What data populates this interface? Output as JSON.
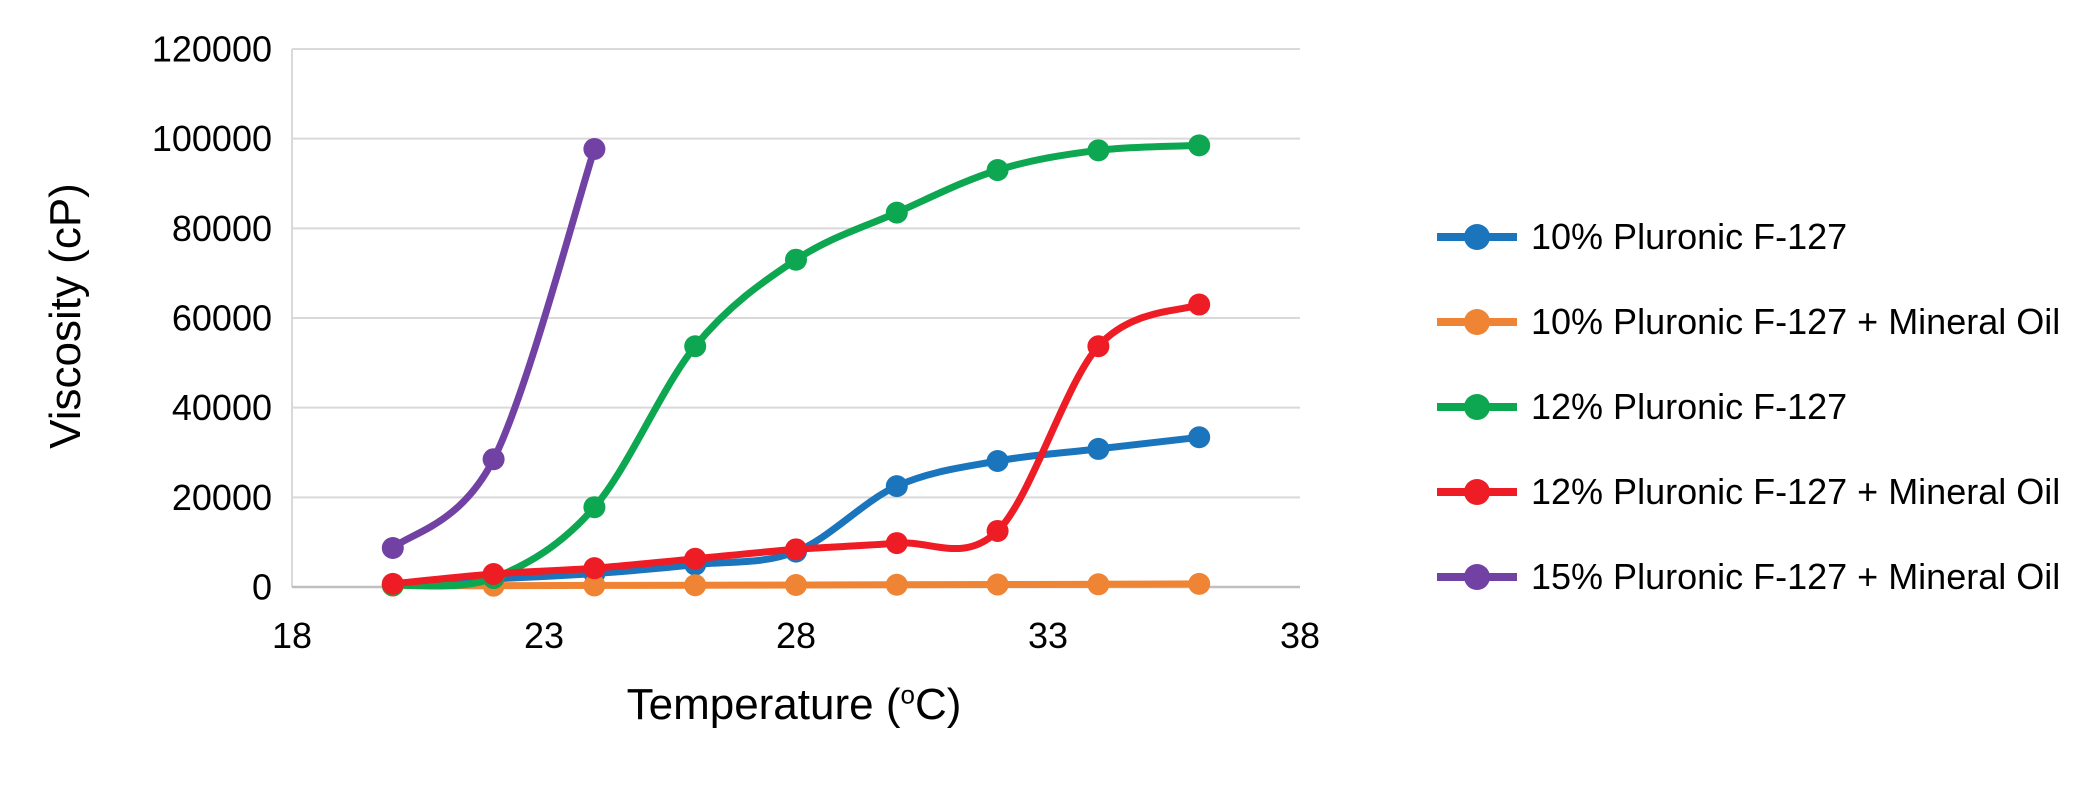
{
  "chart_data": {
    "type": "line",
    "title": "",
    "xlabel": "Temperature (°C)",
    "xlabel_parts": {
      "prefix": "Temperature (",
      "sup": "o",
      "suffix": "C)"
    },
    "ylabel": "Viscosity (cP)",
    "xlim": [
      18,
      38
    ],
    "ylim": [
      0,
      120000
    ],
    "xticks": [
      18,
      23,
      28,
      33,
      38
    ],
    "yticks": [
      0,
      20000,
      40000,
      60000,
      80000,
      100000,
      120000
    ],
    "grid": "horizontal-only",
    "legend_position": "right-middle",
    "marker": "circle",
    "line_style": "smooth",
    "x_values": [
      20,
      22,
      24,
      26,
      28,
      30,
      32,
      34,
      36
    ],
    "series": [
      {
        "name": "10% Pluronic F-127",
        "color": "#1B75BC",
        "values": [
          500,
          1800,
          3000,
          5000,
          7900,
          22500,
          28100,
          30800,
          33400
        ]
      },
      {
        "name": "10% Pluronic F-127 + Mineral Oil",
        "color": "#EE8434",
        "values": [
          300,
          300,
          350,
          400,
          450,
          500,
          550,
          600,
          700
        ]
      },
      {
        "name": "12% Pluronic F-127",
        "color": "#0CA750",
        "values": [
          400,
          2000,
          17800,
          53700,
          73000,
          83500,
          93000,
          97400,
          98500
        ]
      },
      {
        "name": "12% Pluronic F-127 + Mineral Oil",
        "color": "#EE1C25",
        "values": [
          700,
          2900,
          4200,
          6300,
          8400,
          9800,
          12500,
          53700,
          63000
        ]
      },
      {
        "name": "15% Pluronic F-127 + Mineral Oil",
        "color": "#7142A3",
        "x": [
          20,
          22,
          24
        ],
        "values": [
          8700,
          28500,
          97700
        ]
      }
    ],
    "axis_colors": {
      "gridline": "#D9D9D9",
      "axis_line": "#BFBFBF",
      "tick_text": "#000000"
    }
  }
}
